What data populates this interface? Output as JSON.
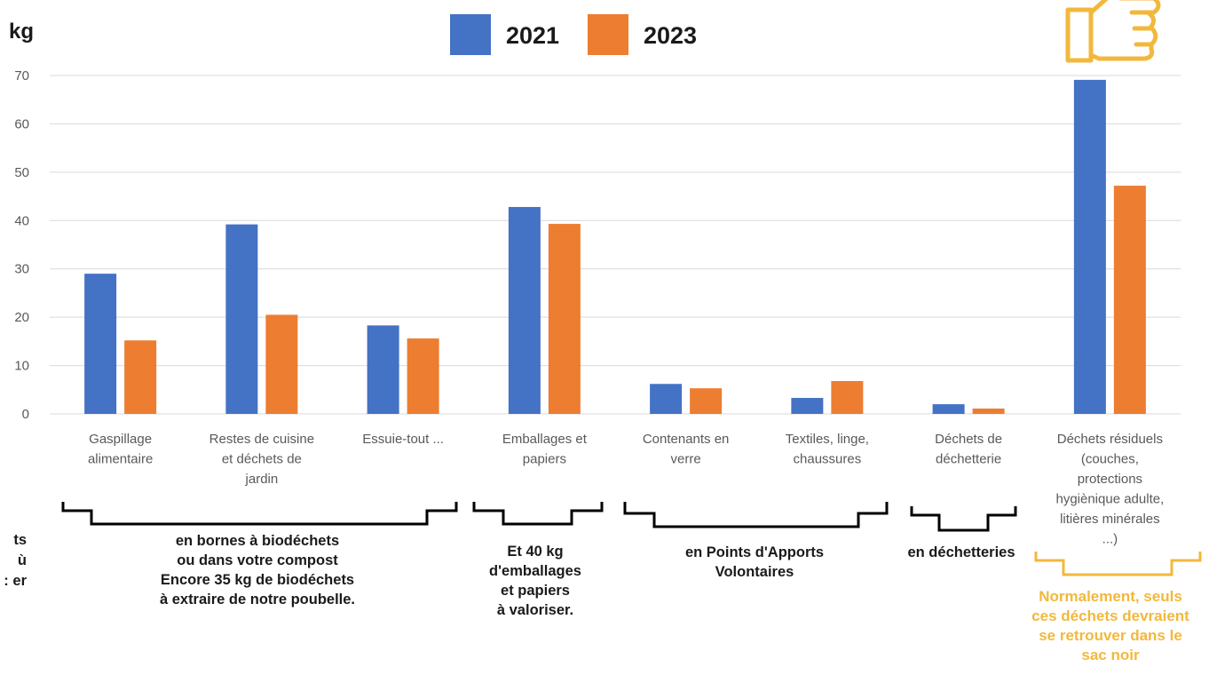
{
  "chart_data": {
    "type": "bar",
    "unit_label": "kg",
    "categories": [
      [
        "Gaspillage",
        "alimentaire"
      ],
      [
        "Restes de cuisine",
        "et déchets de",
        "jardin"
      ],
      [
        "Essuie-tout ..."
      ],
      [
        "Emballages et",
        "papiers"
      ],
      [
        "Contenants en",
        "verre"
      ],
      [
        "Textiles, linge,",
        "chaussures"
      ],
      [
        "Déchets de",
        "déchetterie"
      ],
      [
        "Déchets résiduels",
        "(couches,",
        "protections",
        "hygiènique adulte,",
        "litières minérales",
        "...)"
      ]
    ],
    "series": [
      {
        "name": "2021",
        "color": "#4472c4",
        "values": [
          29,
          39.2,
          18.3,
          42.8,
          6.2,
          3.3,
          2.0,
          69.1
        ]
      },
      {
        "name": "2023",
        "color": "#ed7d31",
        "values": [
          15.2,
          20.5,
          15.6,
          39.3,
          5.3,
          6.8,
          1.1,
          47.2
        ]
      }
    ],
    "ylim": [
      0,
      70
    ],
    "yticks": [
      0,
      10,
      20,
      30,
      40,
      50,
      60,
      70
    ],
    "grid": true,
    "legend_position": "top-center"
  },
  "annotations": {
    "biodechets": [
      "en bornes à biodéchets",
      "ou dans votre compost",
      "Encore 35 kg de biodéchets",
      "à extraire de notre poubelle."
    ],
    "emballages": [
      "Et 40 kg",
      "d'emballages",
      "et papiers",
      "à valoriser."
    ],
    "pav": [
      "en Points d'Apports",
      "Volontaires"
    ],
    "dechetteries": "en déchetteries",
    "residuels": [
      "Normalement, seuls",
      "ces déchets devraient",
      "se retrouver dans le",
      "sac noir"
    ],
    "cut_left_text": [
      "ts",
      "ù",
      "er :"
    ]
  },
  "colors": {
    "bracket": "#000000",
    "highlight": "#f2b83c"
  },
  "icons": [
    "thumbs-up-icon"
  ]
}
